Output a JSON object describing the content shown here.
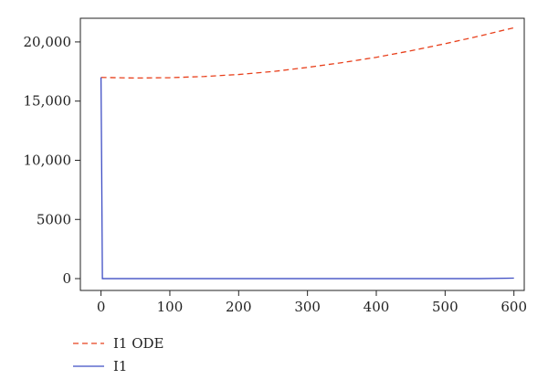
{
  "chart_data": {
    "type": "line",
    "xlim": [
      -30,
      615
    ],
    "ylim": [
      -1000,
      22000
    ],
    "x_ticks": [
      0,
      100,
      200,
      300,
      400,
      500,
      600
    ],
    "y_ticks": [
      0,
      5000,
      10000,
      15000,
      20000
    ],
    "x_tick_labels": [
      "0",
      "100",
      "200",
      "300",
      "400",
      "500",
      "600"
    ],
    "y_tick_labels": [
      "0",
      "5000",
      "10,000",
      "15,000",
      "20,000"
    ],
    "legend_position": "bottom-left",
    "grid": false,
    "series": [
      {
        "name": "I1 ODE",
        "color": "#e8401c",
        "dash": "dashed",
        "x": [
          0,
          50,
          100,
          150,
          200,
          250,
          300,
          350,
          400,
          450,
          500,
          550,
          600
        ],
        "y": [
          17000,
          16950,
          16980,
          17080,
          17250,
          17500,
          17850,
          18250,
          18700,
          19250,
          19850,
          20500,
          21200
        ]
      },
      {
        "name": "I1",
        "color": "#3f4ec4",
        "dash": "solid",
        "x": [
          0,
          1,
          2,
          50,
          100,
          200,
          300,
          400,
          500,
          550,
          600
        ],
        "y": [
          17000,
          9000,
          0,
          0,
          0,
          0,
          0,
          0,
          0,
          0,
          40
        ]
      }
    ]
  }
}
